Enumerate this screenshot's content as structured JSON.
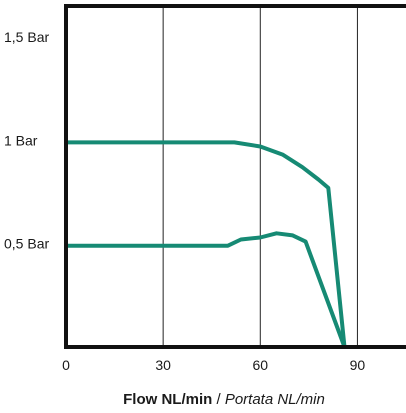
{
  "chart_data": {
    "type": "line",
    "xlabel": "Flow NL/min",
    "xlabel_separator": " / ",
    "xlabel_alt": "Portata NL/min",
    "xlim": [
      0,
      105
    ],
    "ylim": [
      0,
      1.65
    ],
    "x_ticks": [
      {
        "value": 0,
        "label": "0"
      },
      {
        "value": 30,
        "label": "30"
      },
      {
        "value": 60,
        "label": "60"
      },
      {
        "value": 90,
        "label": "90"
      }
    ],
    "y_ticks": [
      {
        "value": 0.5,
        "label": "0,5 Bar"
      },
      {
        "value": 1.0,
        "label": "1 Bar"
      },
      {
        "value": 1.5,
        "label": "1,5 Bar"
      }
    ],
    "grid": {
      "vertical_at": [
        30,
        60,
        90
      ],
      "horizontal": false
    },
    "line_color": "#168a74",
    "series": [
      {
        "values": [
          [
            0,
            0.99
          ],
          [
            52,
            0.99
          ],
          [
            60,
            0.97
          ],
          [
            67,
            0.93
          ],
          [
            73,
            0.87
          ],
          [
            78,
            0.81
          ],
          [
            81,
            0.77
          ],
          [
            86,
            0.0
          ]
        ]
      },
      {
        "values": [
          [
            0,
            0.49
          ],
          [
            50,
            0.49
          ],
          [
            54,
            0.52
          ],
          [
            60,
            0.53
          ],
          [
            65,
            0.55
          ],
          [
            70,
            0.54
          ],
          [
            74,
            0.51
          ],
          [
            86,
            0.0
          ]
        ]
      }
    ]
  }
}
